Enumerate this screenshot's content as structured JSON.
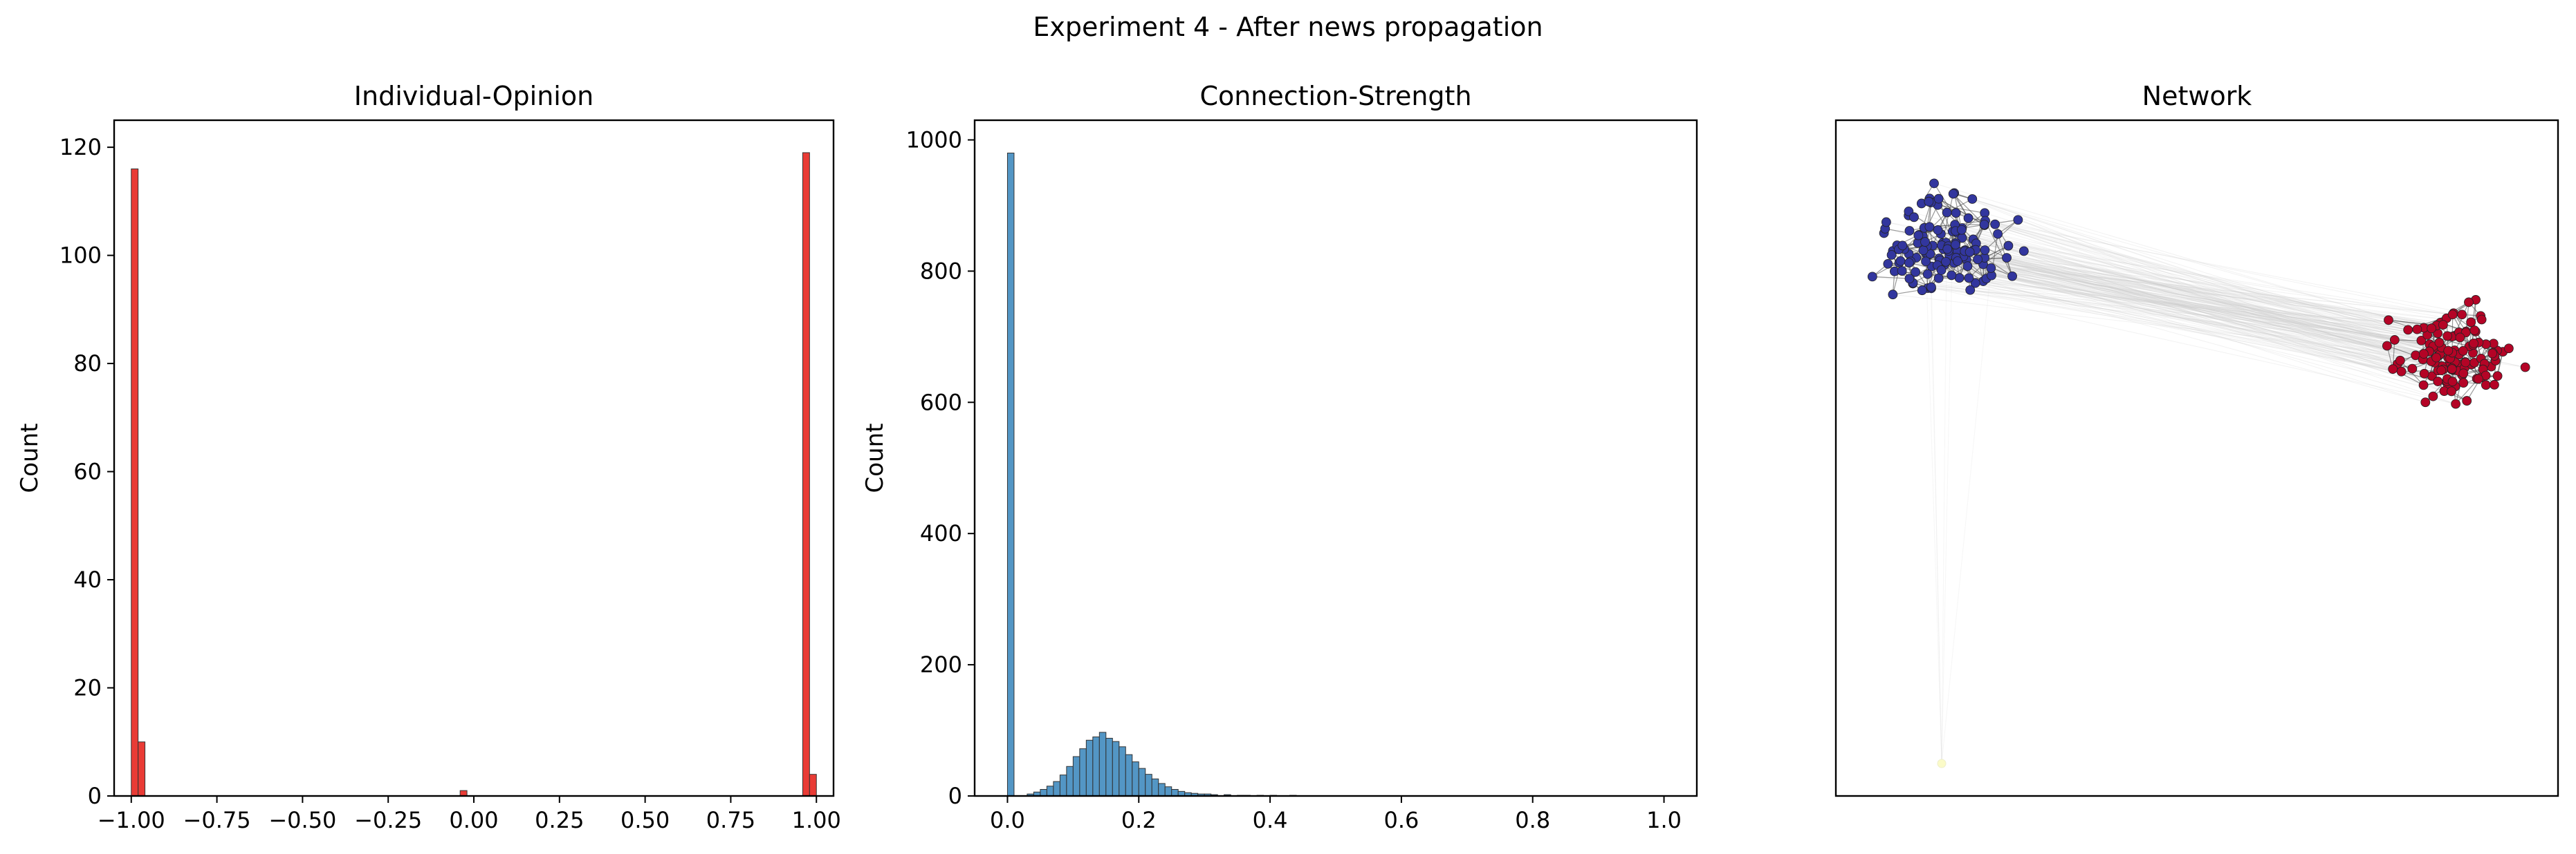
{
  "figure": {
    "suptitle": "Experiment 4 - After news propagation"
  },
  "chart_data": [
    {
      "type": "bar",
      "title": "Individual-Opinion",
      "xlabel": "",
      "ylabel": "Count",
      "xlim": [
        -1.05,
        1.05
      ],
      "ylim": [
        0,
        125
      ],
      "xticks": [
        -1.0,
        -0.75,
        -0.5,
        -0.25,
        0.0,
        0.25,
        0.5,
        0.75,
        1.0
      ],
      "xtick_labels": [
        "−1.00",
        "−0.75",
        "−0.50",
        "−0.25",
        "0.00",
        "0.25",
        "0.50",
        "0.75",
        "1.00"
      ],
      "yticks": [
        0,
        20,
        40,
        60,
        80,
        100,
        120
      ],
      "bar_color": "#e8302a",
      "bin_width": 0.02,
      "bins": [
        {
          "x": -1.0,
          "count": 116
        },
        {
          "x": -0.98,
          "count": 10
        },
        {
          "x": -0.04,
          "count": 1
        },
        {
          "x": 0.96,
          "count": 119
        },
        {
          "x": 0.98,
          "count": 4
        }
      ]
    },
    {
      "type": "bar",
      "title": "Connection-Strength",
      "xlabel": "",
      "ylabel": "Count",
      "xlim": [
        -0.05,
        1.05
      ],
      "ylim": [
        0,
        1030
      ],
      "xticks": [
        0.0,
        0.2,
        0.4,
        0.6,
        0.8,
        1.0
      ],
      "xtick_labels": [
        "0.0",
        "0.2",
        "0.4",
        "0.6",
        "0.8",
        "1.0"
      ],
      "yticks": [
        0,
        200,
        400,
        600,
        800,
        1000
      ],
      "bar_color": "#4a90c2",
      "bin_width": 0.01,
      "bins": [
        {
          "x": 0.0,
          "count": 980
        },
        {
          "x": 0.03,
          "count": 3
        },
        {
          "x": 0.04,
          "count": 6
        },
        {
          "x": 0.05,
          "count": 10
        },
        {
          "x": 0.06,
          "count": 15
        },
        {
          "x": 0.07,
          "count": 22
        },
        {
          "x": 0.08,
          "count": 32
        },
        {
          "x": 0.09,
          "count": 45
        },
        {
          "x": 0.1,
          "count": 60
        },
        {
          "x": 0.11,
          "count": 72
        },
        {
          "x": 0.12,
          "count": 85
        },
        {
          "x": 0.13,
          "count": 90
        },
        {
          "x": 0.14,
          "count": 97
        },
        {
          "x": 0.15,
          "count": 88
        },
        {
          "x": 0.16,
          "count": 83
        },
        {
          "x": 0.17,
          "count": 75
        },
        {
          "x": 0.18,
          "count": 63
        },
        {
          "x": 0.19,
          "count": 52
        },
        {
          "x": 0.2,
          "count": 42
        },
        {
          "x": 0.21,
          "count": 33
        },
        {
          "x": 0.22,
          "count": 26
        },
        {
          "x": 0.23,
          "count": 19
        },
        {
          "x": 0.24,
          "count": 14
        },
        {
          "x": 0.25,
          "count": 10
        },
        {
          "x": 0.26,
          "count": 7
        },
        {
          "x": 0.27,
          "count": 5
        },
        {
          "x": 0.28,
          "count": 4
        },
        {
          "x": 0.29,
          "count": 3
        },
        {
          "x": 0.3,
          "count": 3
        },
        {
          "x": 0.31,
          "count": 2
        },
        {
          "x": 0.33,
          "count": 2
        },
        {
          "x": 0.35,
          "count": 1
        },
        {
          "x": 0.36,
          "count": 1
        },
        {
          "x": 0.38,
          "count": 1
        },
        {
          "x": 0.4,
          "count": 1
        },
        {
          "x": 0.43,
          "count": 1
        }
      ]
    },
    {
      "type": "network",
      "title": "Network",
      "communities": [
        {
          "name": "",
          "color": "#32369e",
          "node_count": 126
        },
        {
          "name": "",
          "color": "#b40426",
          "node_count": 123
        },
        {
          "name": "",
          "color": "#fbfbc8",
          "node_count": 1
        }
      ],
      "edge_color": "#555555",
      "cross_edge_color": "#cccccc"
    }
  ]
}
